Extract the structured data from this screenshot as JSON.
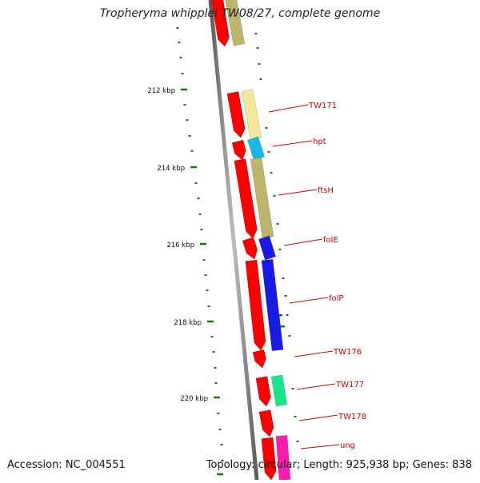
{
  "title": "Tropheryma whipplei TW08/27, complete genome",
  "footer": {
    "accession": "Accession: NC_004551",
    "topology": "Topology: circular; Length: 925,938 bp; Genes: 838"
  },
  "scale": {
    "ticks": [
      {
        "kbp": 212,
        "label": "212 kbp"
      },
      {
        "kbp": 214,
        "label": "214 kbp"
      },
      {
        "kbp": 216,
        "label": "216 kbp"
      },
      {
        "kbp": 218,
        "label": "218 kbp"
      },
      {
        "kbp": 220,
        "label": "220 kbp"
      }
    ]
  },
  "genes": [
    {
      "label": "",
      "color": "#bdb56a"
    },
    {
      "label": "TW171",
      "color": "#f3e79a"
    },
    {
      "label": "hpt",
      "color": "#19b7e6"
    },
    {
      "label": "ftsH",
      "color": "#bdb56a"
    },
    {
      "label": "folE",
      "color": "#1a1ae6"
    },
    {
      "label": "folP",
      "color": "#1a1ae6"
    },
    {
      "label": "TW176",
      "color": "#ffffff"
    },
    {
      "label": "TW177",
      "color": "#19e68a"
    },
    {
      "label": "TW178",
      "color": "#ffffff"
    },
    {
      "label": "ung",
      "color": "#ff1ab0"
    }
  ],
  "colors": {
    "cds": "#ff0000",
    "backbone": "#808080",
    "tick": "#117a11",
    "label": "#cc0000"
  }
}
